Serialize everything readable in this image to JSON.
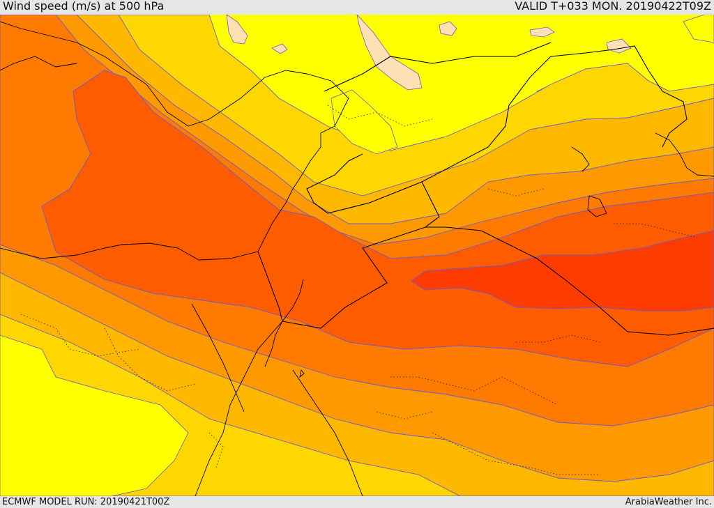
{
  "header": {
    "title": "Wind speed (m/s) at 500 hPa",
    "valid": "VALID T+033 MON. 20190422T09Z"
  },
  "footer": {
    "model_run": "ECMWF MODEL RUN: 20190421T00Z",
    "credit": "ArabiaWeather Inc."
  },
  "colors": {
    "band_lightest": "#fde0b4",
    "band_yellow": "#ffff00",
    "band_gold": "#ffd700",
    "band_amber": "#ffb800",
    "band_orange": "#ff9900",
    "band_dark_orange": "#ff7a00",
    "band_red_orange": "#ff5c00",
    "band_core": "#ff3c00",
    "contour_line": "#6a5acd",
    "border_line": "#000000"
  }
}
